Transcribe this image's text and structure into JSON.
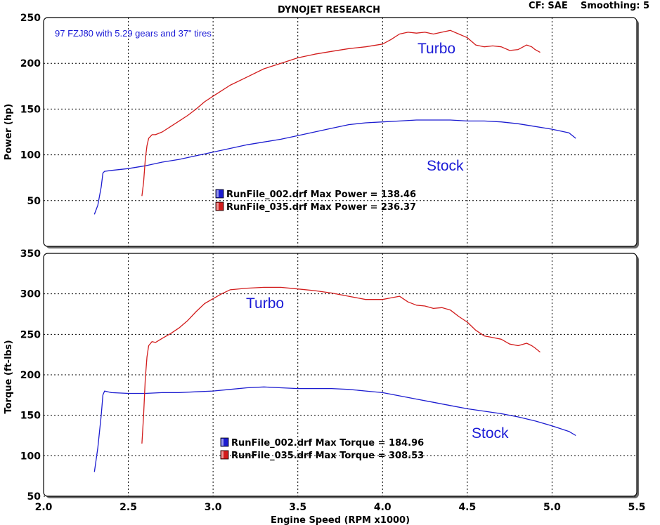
{
  "header": {
    "title": "DYNOJET RESEARCH",
    "cf": "CF: SAE",
    "smoothing": "Smoothing: 5"
  },
  "colors": {
    "stock": "#1c1cd0",
    "turbo": "#d21c1c"
  },
  "chart_data": [
    {
      "type": "line",
      "title": "",
      "subtitle": "97 FZJ80 with 5.29 gears and 37\" tires",
      "ylabel": "Power (hp)",
      "xlabel": "",
      "xlim": [
        2.0,
        5.5
      ],
      "ylim": [
        0,
        250
      ],
      "xticks": [
        2.0,
        2.5,
        3.0,
        3.5,
        4.0,
        4.5,
        5.0,
        5.5
      ],
      "yticks": [
        50,
        100,
        150,
        200,
        250
      ],
      "grid": true,
      "annotations": [
        "Turbo",
        "Stock"
      ],
      "legend": [
        "RunFile_002.drf Max Power = 138.46",
        "RunFile_035.drf Max Power = 236.37"
      ],
      "series": [
        {
          "x": [
            2.3,
            2.32,
            2.34,
            2.35,
            2.36,
            2.4,
            2.5,
            2.6,
            2.7,
            2.8,
            2.9,
            3.0,
            3.1,
            3.2,
            3.3,
            3.4,
            3.5,
            3.6,
            3.7,
            3.8,
            3.9,
            4.0,
            4.1,
            4.2,
            4.3,
            4.4,
            4.5,
            4.6,
            4.7,
            4.8,
            4.9,
            5.0,
            5.1,
            5.14
          ],
          "values": [
            35,
            45,
            65,
            80,
            82,
            83,
            85,
            88,
            92,
            95,
            99,
            103,
            107,
            111,
            114,
            117,
            121,
            125,
            129,
            133,
            135,
            136,
            137,
            138,
            138,
            138,
            137,
            137,
            136,
            134,
            131,
            128,
            124,
            118
          ]
        },
        {
          "x": [
            2.58,
            2.59,
            2.6,
            2.61,
            2.62,
            2.64,
            2.66,
            2.7,
            2.75,
            2.8,
            2.85,
            2.9,
            2.95,
            3.0,
            3.05,
            3.1,
            3.2,
            3.3,
            3.4,
            3.5,
            3.6,
            3.7,
            3.8,
            3.9,
            4.0,
            4.05,
            4.1,
            4.15,
            4.2,
            4.25,
            4.3,
            4.35,
            4.4,
            4.45,
            4.5,
            4.55,
            4.6,
            4.65,
            4.7,
            4.75,
            4.8,
            4.85,
            4.88,
            4.9,
            4.93
          ],
          "values": [
            55,
            70,
            95,
            110,
            118,
            122,
            122,
            125,
            131,
            137,
            143,
            150,
            158,
            164,
            170,
            176,
            185,
            194,
            200,
            206,
            210,
            213,
            216,
            218,
            221,
            226,
            232,
            234,
            233,
            234,
            232,
            234,
            236,
            232,
            228,
            220,
            218,
            219,
            218,
            214,
            215,
            220,
            218,
            215,
            212
          ]
        }
      ]
    },
    {
      "type": "line",
      "title": "",
      "ylabel": "Torque (ft-lbs)",
      "xlabel": "Engine Speed (RPM x1000)",
      "xlim": [
        2.0,
        5.5
      ],
      "ylim": [
        50,
        350
      ],
      "xticks": [
        2.0,
        2.5,
        3.0,
        3.5,
        4.0,
        4.5,
        5.0,
        5.5
      ],
      "yticks": [
        50,
        100,
        150,
        200,
        250,
        300,
        350
      ],
      "grid": true,
      "annotations": [
        "Turbo",
        "Stock"
      ],
      "legend": [
        "RunFile_002.drf Max Torque = 184.96",
        "RunFile_035.drf Max Torque = 308.53"
      ],
      "series": [
        {
          "x": [
            2.3,
            2.32,
            2.34,
            2.35,
            2.36,
            2.38,
            2.4,
            2.5,
            2.6,
            2.7,
            2.8,
            2.9,
            3.0,
            3.1,
            3.2,
            3.3,
            3.4,
            3.5,
            3.6,
            3.7,
            3.8,
            3.9,
            4.0,
            4.1,
            4.2,
            4.3,
            4.4,
            4.5,
            4.6,
            4.7,
            4.8,
            4.9,
            5.0,
            5.1,
            5.14
          ],
          "values": [
            80,
            110,
            150,
            175,
            180,
            179,
            178,
            177,
            177,
            178,
            178,
            179,
            180,
            182,
            184,
            185,
            184,
            183,
            183,
            183,
            182,
            180,
            178,
            174,
            170,
            166,
            162,
            158,
            155,
            152,
            148,
            143,
            137,
            130,
            125
          ]
        },
        {
          "x": [
            2.58,
            2.59,
            2.6,
            2.61,
            2.62,
            2.64,
            2.66,
            2.7,
            2.75,
            2.8,
            2.85,
            2.9,
            2.95,
            3.0,
            3.05,
            3.1,
            3.2,
            3.3,
            3.4,
            3.5,
            3.6,
            3.7,
            3.8,
            3.9,
            4.0,
            4.05,
            4.1,
            4.15,
            4.2,
            4.25,
            4.3,
            4.35,
            4.4,
            4.45,
            4.5,
            4.55,
            4.6,
            4.65,
            4.7,
            4.75,
            4.8,
            4.85,
            4.88,
            4.9,
            4.93
          ],
          "values": [
            115,
            150,
            195,
            222,
            236,
            241,
            240,
            245,
            251,
            258,
            267,
            278,
            288,
            294,
            300,
            305,
            307,
            308,
            308,
            306,
            304,
            301,
            297,
            293,
            293,
            295,
            297,
            290,
            286,
            285,
            282,
            283,
            280,
            272,
            265,
            255,
            248,
            246,
            244,
            238,
            236,
            239,
            236,
            233,
            228
          ]
        }
      ]
    }
  ]
}
